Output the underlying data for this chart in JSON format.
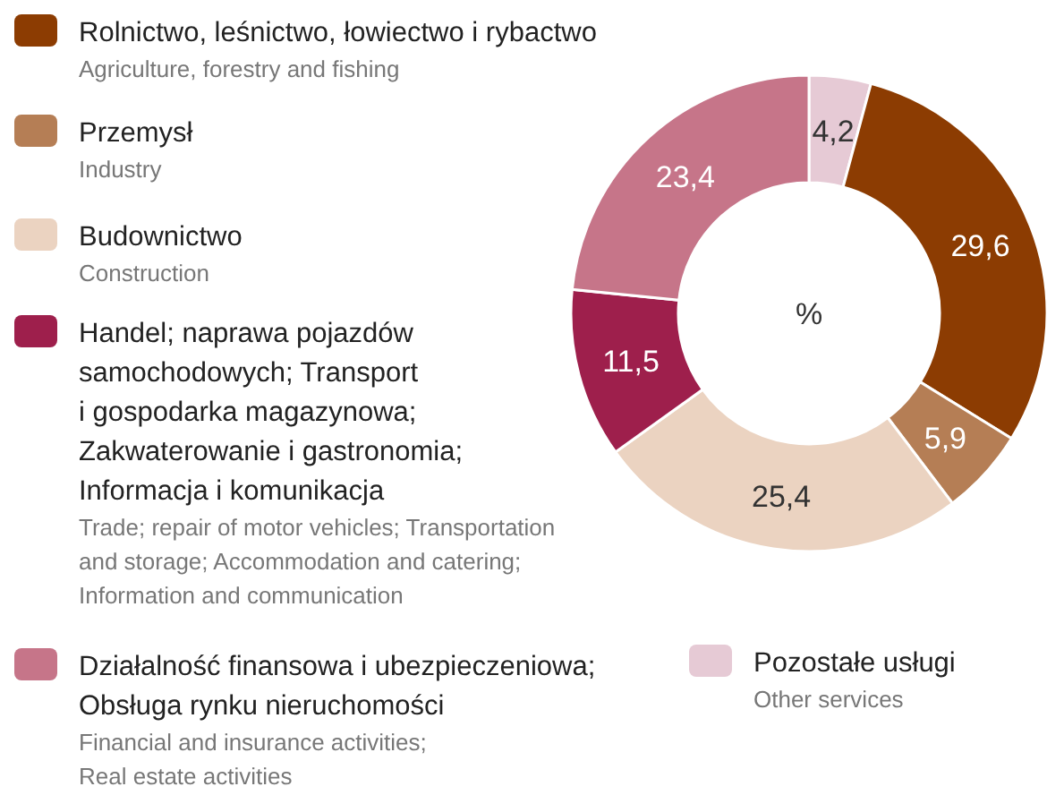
{
  "chart_data": {
    "type": "donut",
    "ylabel": "%",
    "value_labels": [
      "4,2",
      "29,6",
      "5,9",
      "25,4",
      "11,5",
      "23,4"
    ],
    "legend": "left",
    "categories": [
      "Pozostałe usługi",
      "Rolnictwo, leśnictwo, łowiectwo i rybactwo",
      "Przemysł",
      "Budownictwo",
      "Handel; naprawa pojazdów\nsamochodowych; Transport\ni gospodarka magazynowa;\nZakwaterowanie i gastronomia;\nInformacja i komunikacja",
      "Działalność finansowa i ubezpieczeniowa;\nObsługa rynku nieruchomości"
    ],
    "values": [
      4.2,
      29.6,
      5.9,
      25.4,
      11.5,
      23.4
    ],
    "colors": [
      "#e6cad5",
      "#8c3c02",
      "#b57e55",
      "#ebd3c1",
      "#9e1f4c",
      "#c67589"
    ],
    "annotations": [
      "Other services",
      "Agriculture, forestry and fishing",
      "Industry",
      "Construction",
      "Trade; repair of motor vehicles; Transportation\nand storage; Accommodation and catering;\nInformation and communication",
      "Financial and insurance activities;\nReal estate activities"
    ]
  }
}
